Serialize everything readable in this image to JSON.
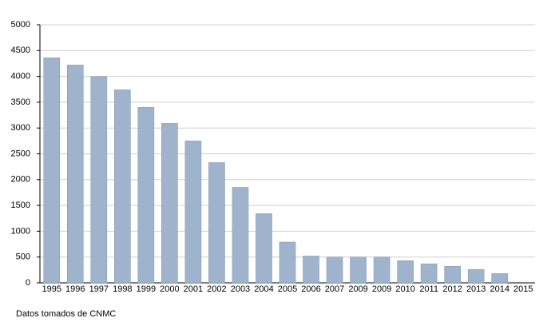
{
  "chart_data": {
    "type": "bar",
    "categories": [
      "1995",
      "1996",
      "1997",
      "1998",
      "1999",
      "2000",
      "2001",
      "2002",
      "2003",
      "2004",
      "2005",
      "2006",
      "2007",
      "2009",
      "2009",
      "2010",
      "2011",
      "2012",
      "2013",
      "2014",
      "2015"
    ],
    "values": [
      4360,
      4220,
      4000,
      3740,
      3400,
      3090,
      2750,
      2330,
      1850,
      1340,
      790,
      520,
      500,
      500,
      500,
      430,
      370,
      320,
      260,
      180,
      null
    ],
    "color": "#9fb4cc",
    "ylim": [
      0,
      5000
    ],
    "yticks": [
      0,
      500,
      1000,
      1500,
      2000,
      2500,
      3000,
      3500,
      4000,
      4500,
      5000
    ],
    "grid": true,
    "note": "Datos tomados de CNMC"
  }
}
